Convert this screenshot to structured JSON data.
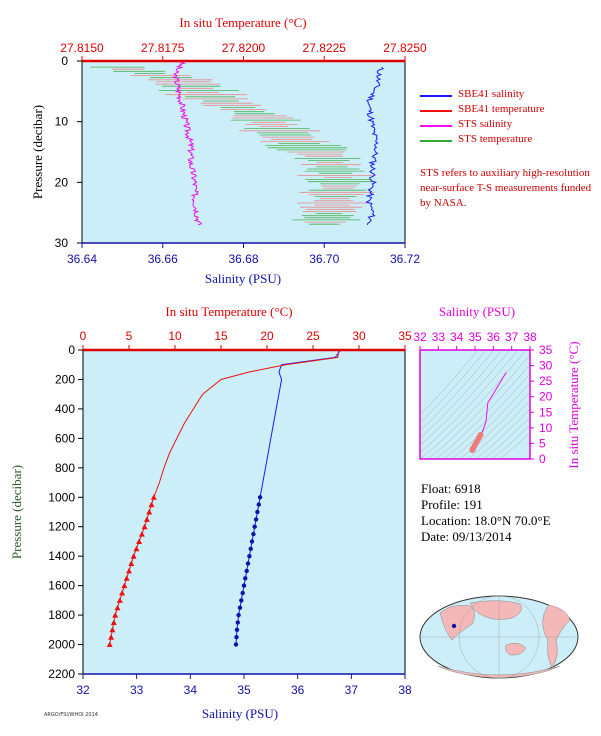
{
  "top_chart": {
    "title": "In situ Temperature (°C)",
    "temp_ticks": [
      "27.8150",
      "27.8175",
      "27.8200",
      "27.8225",
      "27.8250"
    ],
    "salinity_ticks": [
      "36.64",
      "36.66",
      "36.68",
      "36.70",
      "36.72"
    ],
    "pressure_ticks": [
      "0",
      "10",
      "20",
      "30"
    ],
    "xlabel": "Salinity (PSU)",
    "ylabel": "Pressure (decibar)"
  },
  "legend": {
    "items": [
      {
        "label": "SBE41 salinity",
        "color": "#1a1aff"
      },
      {
        "label": "SBE41 temperature",
        "color": "#ee1111"
      },
      {
        "label": "STS salinity",
        "color": "#ee11ee"
      },
      {
        "label": "STS temperature",
        "color": "#33aa33"
      }
    ],
    "note": "STS refers to auxiliary high-resolution near-surface T-S measurements funded by NASA."
  },
  "main_chart": {
    "title": "In situ Temperature (°C)",
    "temp_ticks": [
      "0",
      "5",
      "10",
      "15",
      "20",
      "25",
      "30",
      "35"
    ],
    "salinity_ticks": [
      "32",
      "33",
      "34",
      "35",
      "36",
      "37",
      "38"
    ],
    "pressure_ticks": [
      "0",
      "200",
      "400",
      "600",
      "800",
      "1000",
      "1200",
      "1400",
      "1600",
      "1800",
      "2000",
      "2200"
    ],
    "xlabel": "Salinity (PSU)",
    "ylabel": "Pressure (decibar)"
  },
  "ts_chart": {
    "title": "Salinity (PSU)",
    "salinity_ticks": [
      "32",
      "33",
      "34",
      "35",
      "36",
      "37",
      "38"
    ],
    "temp_ticks": [
      "35",
      "30",
      "25",
      "20",
      "15",
      "10",
      "5",
      "0"
    ],
    "ylabel": "In situ Temperature (°C)"
  },
  "info": {
    "float": "Float:  6918",
    "profile": "Profile:  191",
    "location": "Location:  18.0°N  70.0°E",
    "date": "Date:  09/13/2014"
  },
  "credit": "ARGO/FSI/WHOI 2014",
  "colors": {
    "plot_bg": "#cceef8",
    "axis_red": "#dd0000",
    "axis_blue": "#1010aa",
    "axis_magenta": "#dd00dd",
    "salinity": "#1a1aff",
    "temperature": "#ee1111",
    "sts_salinity": "#ee11ee",
    "sts_temperature": "#33aa33",
    "land": "#f4b8b8",
    "ocean": "#cceef8"
  },
  "chart_data": [
    {
      "type": "line",
      "name": "near-surface profile",
      "xlim_salinity": [
        36.64,
        36.72
      ],
      "xlim_temperature": [
        27.815,
        27.825
      ],
      "ylim_pressure": [
        0,
        30
      ],
      "series": [
        {
          "name": "SBE41 salinity",
          "x": [
            36.714,
            36.713,
            36.711,
            36.712,
            36.713,
            36.712,
            36.712,
            36.711,
            36.712,
            36.711
          ],
          "y": [
            1,
            4,
            7,
            11,
            14,
            17,
            20,
            23,
            25,
            27
          ]
        },
        {
          "name": "STS salinity",
          "x": [
            36.665,
            36.663,
            36.664,
            36.665,
            36.666,
            36.667,
            36.667,
            36.668,
            36.668,
            36.669
          ],
          "y": [
            0,
            2,
            5,
            8,
            11,
            14,
            17,
            20,
            23,
            27
          ]
        },
        {
          "name": "STS temperature",
          "x": [
            27.8161,
            27.818,
            27.819,
            27.8205,
            27.8215,
            27.8226,
            27.823,
            27.8228,
            27.8225
          ],
          "y": [
            1,
            3,
            6,
            9,
            13,
            16,
            20,
            23,
            27
          ]
        }
      ]
    },
    {
      "type": "line",
      "name": "full profile",
      "xlim_salinity": [
        32,
        38
      ],
      "xlim_temperature": [
        0,
        35
      ],
      "ylim_pressure": [
        0,
        2200
      ],
      "series": [
        {
          "name": "salinity",
          "x": [
            36.8,
            36.7,
            35.7,
            35.65,
            35.7,
            35.65,
            35.6,
            35.55,
            35.5,
            35.45,
            35.4,
            35.35,
            35.3,
            35.25,
            35.2,
            35.15,
            35.1,
            35.05,
            35.0,
            34.95,
            34.9,
            34.87,
            34.85
          ],
          "y": [
            0,
            50,
            100,
            150,
            200,
            300,
            400,
            500,
            600,
            700,
            800,
            900,
            1000,
            1100,
            1200,
            1300,
            1400,
            1500,
            1600,
            1700,
            1800,
            1900,
            2000
          ]
        },
        {
          "name": "temperature",
          "x": [
            27.8,
            27.7,
            22.0,
            18.0,
            15.0,
            13.0,
            12.0,
            11.0,
            10.2,
            9.4,
            8.8,
            8.3,
            7.7,
            7.2,
            6.7,
            6.1,
            5.5,
            5.0,
            4.5,
            4.0,
            3.5,
            3.2,
            2.9
          ],
          "y": [
            0,
            50,
            100,
            150,
            200,
            300,
            400,
            500,
            600,
            700,
            800,
            900,
            1000,
            1100,
            1200,
            1300,
            1400,
            1500,
            1600,
            1700,
            1800,
            1900,
            2000
          ]
        }
      ]
    },
    {
      "type": "scatter",
      "name": "T-S diagram",
      "xlim_salinity": [
        32,
        38
      ],
      "ylim_temperature": [
        0,
        35
      ],
      "series": [
        {
          "name": "T-S",
          "x": [
            36.7,
            35.7,
            35.6,
            35.5,
            35.4,
            35.3,
            35.2,
            35.1,
            35.0,
            34.9,
            34.85
          ],
          "y": [
            27.8,
            18.0,
            12.0,
            10.2,
            8.8,
            7.7,
            6.7,
            5.5,
            4.5,
            3.5,
            2.9
          ]
        }
      ]
    }
  ]
}
